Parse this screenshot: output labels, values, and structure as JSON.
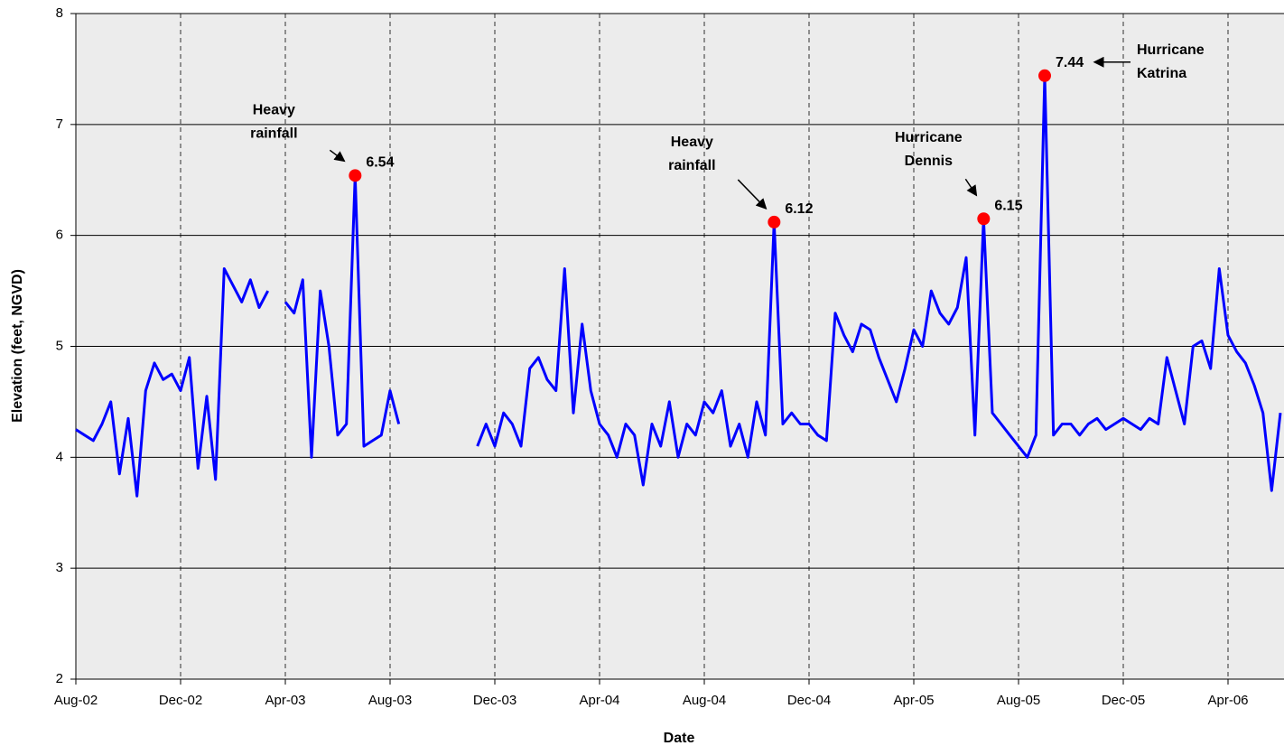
{
  "chart_data": {
    "type": "line",
    "x_label": "Date",
    "y_label": "Elevation (feet, NGVD)",
    "categories": [
      "Aug-02",
      null,
      null,
      null,
      null,
      null,
      null,
      null,
      null,
      null,
      null,
      null,
      "Dec-02",
      null,
      null,
      null,
      null,
      null,
      null,
      null,
      null,
      null,
      null,
      null,
      "Apr-03",
      null,
      null,
      null,
      null,
      null,
      null,
      null,
      null,
      null,
      null,
      null,
      "Aug-03",
      null,
      null,
      null,
      null,
      null,
      null,
      null,
      null,
      null,
      null,
      null,
      "Dec-03",
      null,
      null,
      null,
      null,
      null,
      null,
      null,
      null,
      null,
      null,
      null,
      "Apr-04",
      null,
      null,
      null,
      null,
      null,
      null,
      null,
      null,
      null,
      null,
      null,
      "Aug-04",
      null,
      null,
      null,
      null,
      null,
      null,
      null,
      null,
      null,
      null,
      null,
      "Dec-04",
      null,
      null,
      null,
      null,
      null,
      null,
      null,
      null,
      null,
      null,
      null,
      "Apr-05",
      null,
      null,
      null,
      null,
      null,
      null,
      null,
      null,
      null,
      null,
      null,
      "Aug-05",
      null,
      null,
      null,
      null,
      null,
      null,
      null,
      null,
      null,
      null,
      null,
      "Dec-05",
      null,
      null,
      null,
      null,
      null,
      null,
      null,
      null,
      null,
      null,
      null,
      "Apr-06",
      null,
      null,
      null,
      null,
      null,
      null
    ],
    "series": [
      {
        "color": "#0000ff",
        "values": [
          4.25,
          4.2,
          4.15,
          4.3,
          4.5,
          3.85,
          4.35,
          3.65,
          4.6,
          4.85,
          4.7,
          4.75,
          4.6,
          4.9,
          3.9,
          4.55,
          3.8,
          5.7,
          5.55,
          5.4,
          5.6,
          5.35,
          5.5,
          null,
          5.4,
          5.3,
          5.6,
          4.0,
          5.5,
          5.0,
          4.2,
          4.3,
          6.54,
          4.1,
          4.15,
          4.2,
          4.6,
          4.3,
          null,
          null,
          null,
          null,
          null,
          null,
          null,
          null,
          4.1,
          4.3,
          4.1,
          4.4,
          4.3,
          4.1,
          4.8,
          4.9,
          4.7,
          4.6,
          5.7,
          4.4,
          5.2,
          4.6,
          4.3,
          4.2,
          4.0,
          4.3,
          4.2,
          3.75,
          4.3,
          4.1,
          4.5,
          4.0,
          4.3,
          4.2,
          4.5,
          4.4,
          4.6,
          4.1,
          4.3,
          4.0,
          4.5,
          4.2,
          6.12,
          4.3,
          4.4,
          4.3,
          4.3,
          4.2,
          4.15,
          5.3,
          5.1,
          4.95,
          5.2,
          5.15,
          4.9,
          4.7,
          4.5,
          4.8,
          5.15,
          5.0,
          5.5,
          5.3,
          5.2,
          5.35,
          5.8,
          4.2,
          6.15,
          4.4,
          4.3,
          4.2,
          4.1,
          4.0,
          4.2,
          7.44,
          4.2,
          4.3,
          4.3,
          4.2,
          4.3,
          4.35,
          4.25,
          4.3,
          4.35,
          4.3,
          4.25,
          4.35,
          4.3,
          4.9,
          4.6,
          4.3,
          5.0,
          5.05,
          4.8,
          5.7,
          5.1,
          4.95,
          4.85,
          4.65,
          4.4,
          3.7,
          4.4
        ]
      },
      {
        "color": "#ff0000",
        "marker": "circle",
        "data_labels": true,
        "values": [
          null,
          null,
          null,
          null,
          null,
          null,
          null,
          null,
          null,
          null,
          null,
          null,
          null,
          null,
          null,
          null,
          null,
          null,
          null,
          null,
          null,
          null,
          null,
          null,
          null,
          null,
          null,
          null,
          null,
          null,
          null,
          null,
          6.54,
          null,
          null,
          null,
          null,
          null,
          null,
          null,
          null,
          null,
          null,
          null,
          null,
          null,
          null,
          null,
          null,
          null,
          null,
          null,
          null,
          null,
          null,
          null,
          null,
          null,
          null,
          null,
          null,
          null,
          null,
          null,
          null,
          null,
          null,
          null,
          null,
          null,
          null,
          null,
          null,
          null,
          null,
          null,
          null,
          null,
          null,
          null,
          6.12,
          null,
          null,
          null,
          null,
          null,
          null,
          null,
          null,
          null,
          null,
          null,
          null,
          null,
          null,
          null,
          null,
          null,
          null,
          null,
          null,
          null,
          null,
          null,
          6.15,
          null,
          null,
          null,
          null,
          null,
          null,
          7.44,
          null,
          null,
          null,
          null,
          null,
          null,
          null,
          null,
          null,
          null,
          null,
          null,
          null,
          null,
          null,
          null,
          null,
          null,
          null,
          null,
          null,
          null,
          null,
          null,
          null,
          null,
          null
        ]
      }
    ],
    "annotations": [
      "Heavy rainfall",
      "Heavy rainfall",
      "Hurricane Dennis",
      "Hurricane Katrina"
    ],
    "ylim": [
      2,
      8
    ],
    "yticks": [
      2,
      3,
      4,
      5,
      6,
      7,
      8
    ],
    "grid": true
  }
}
